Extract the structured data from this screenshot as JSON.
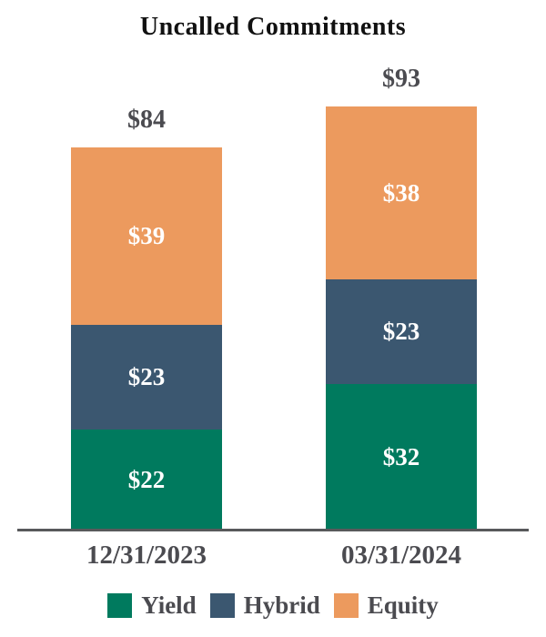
{
  "title": "Uncalled Commitments",
  "chart_data": {
    "type": "bar",
    "subtype": "stacked-column",
    "title": "Uncalled Commitments",
    "categories": [
      "12/31/2023",
      "03/31/2024"
    ],
    "series": [
      {
        "name": "Yield",
        "color": "#007A5E",
        "values": [
          22,
          32
        ],
        "labels": [
          "$22",
          "$32"
        ]
      },
      {
        "name": "Hybrid",
        "color": "#3B5770",
        "values": [
          23,
          23
        ],
        "labels": [
          "$23",
          "$23"
        ]
      },
      {
        "name": "Equity",
        "color": "#EC9A5E",
        "values": [
          39,
          38
        ],
        "labels": [
          "$39",
          "$38"
        ]
      }
    ],
    "totals": [
      84,
      93
    ],
    "total_labels": [
      "$84",
      "$93"
    ],
    "value_prefix": "$",
    "legend": {
      "position": "bottom",
      "entries": [
        "Yield",
        "Hybrid",
        "Equity"
      ]
    },
    "axes": {
      "x_labels": [
        "12/31/2023",
        "03/31/2024"
      ],
      "y_axis_visible": false,
      "gridlines": false,
      "baseline_visible": true
    },
    "ylim": [
      0,
      100
    ]
  },
  "colors": {
    "yield": "#007A5E",
    "hybrid": "#3B5770",
    "equity": "#EC9A5E",
    "axis_line": "#58595B",
    "label_text": "#4B4B50",
    "segment_text": "#FFFFFF",
    "title_text": "#111111",
    "background": "#FFFFFF"
  }
}
